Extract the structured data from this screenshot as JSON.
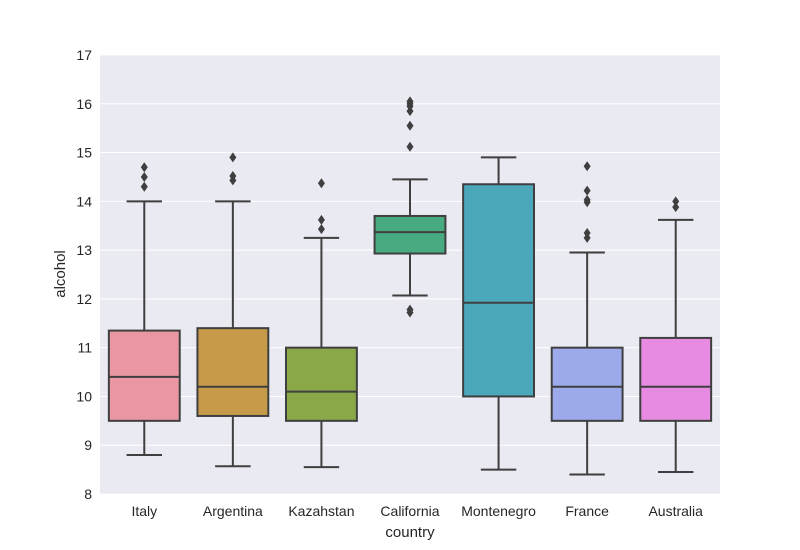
{
  "chart_data": {
    "type": "box",
    "xlabel": "country",
    "ylabel": "alcohol",
    "ylim": [
      8,
      17
    ],
    "yticks": [
      "8",
      "9",
      "10",
      "11",
      "12",
      "13",
      "14",
      "15",
      "16",
      "17"
    ],
    "grid": true,
    "categories": [
      "Italy",
      "Argentina",
      "Kazahstan",
      "California",
      "Montenegro",
      "France",
      "Australia"
    ],
    "boxes": [
      {
        "category": "Italy",
        "color": "#ea96a3",
        "whisker_low": 8.8,
        "q1": 9.5,
        "median": 10.4,
        "q3": 11.35,
        "whisker_high": 14.0,
        "outliers": [
          14.3,
          14.5,
          14.7
        ]
      },
      {
        "category": "Argentina",
        "color": "#c69a49",
        "whisker_low": 8.57,
        "q1": 9.6,
        "median": 10.2,
        "q3": 11.4,
        "whisker_high": 14.0,
        "outliers": [
          14.43,
          14.52,
          14.9
        ]
      },
      {
        "category": "Kazahstan",
        "color": "#8ba849",
        "whisker_low": 8.55,
        "q1": 9.5,
        "median": 10.1,
        "q3": 11.0,
        "whisker_high": 13.25,
        "outliers": [
          13.43,
          13.62,
          14.37
        ]
      },
      {
        "category": "California",
        "color": "#48aa81",
        "whisker_low": 12.07,
        "q1": 12.93,
        "median": 13.37,
        "q3": 13.7,
        "whisker_high": 14.45,
        "outliers": [
          11.72,
          11.78,
          15.12,
          15.55,
          15.85,
          15.95,
          16.0,
          16.05
        ]
      },
      {
        "category": "Montenegro",
        "color": "#4aa8ba",
        "whisker_low": 8.5,
        "q1": 10.0,
        "median": 11.92,
        "q3": 14.35,
        "whisker_high": 14.9,
        "outliers": []
      },
      {
        "category": "France",
        "color": "#9ca9ea",
        "whisker_low": 8.4,
        "q1": 9.5,
        "median": 10.2,
        "q3": 11.0,
        "whisker_high": 12.95,
        "outliers": [
          13.25,
          13.35,
          13.98,
          14.03,
          14.22,
          14.72
        ]
      },
      {
        "category": "Australia",
        "color": "#e68be1",
        "whisker_low": 8.45,
        "q1": 9.5,
        "median": 10.2,
        "q3": 11.2,
        "whisker_high": 13.62,
        "outliers": [
          13.88,
          14.0
        ]
      }
    ]
  }
}
